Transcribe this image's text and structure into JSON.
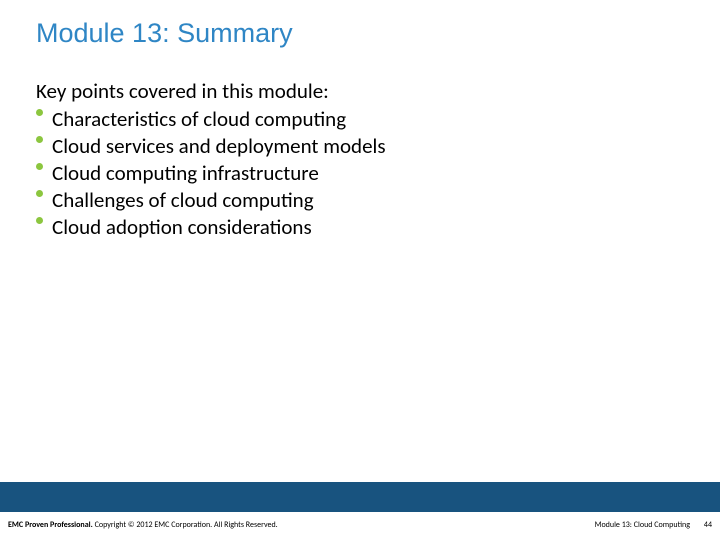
{
  "colors": {
    "title": "#2f86c5",
    "body": "#000000",
    "bullet": "#8cc63f",
    "footer_bar": "#18537f",
    "footer_text": "#000000",
    "background": "#ffffff"
  },
  "title": "Module 13: Summary",
  "intro": "Key points covered in this module:",
  "bullets": [
    "Characteristics of cloud computing",
    "Cloud services and deployment models",
    "Cloud computing infrastructure",
    "Challenges of cloud computing",
    "Cloud adoption considerations"
  ],
  "footer": {
    "left_bold": "EMC Proven Professional.",
    "left_rest": " Copyright © 2012 EMC Corporation. All Rights Reserved.",
    "module": "Module 13: Cloud Computing",
    "page": "44"
  }
}
